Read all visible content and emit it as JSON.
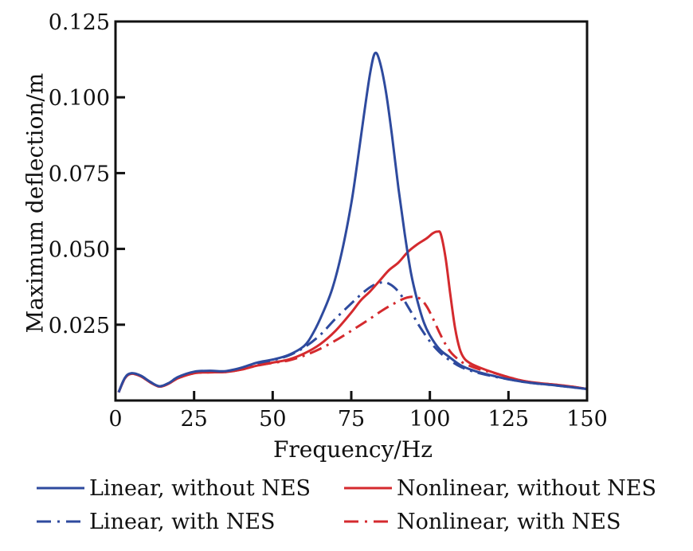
{
  "chart_data": {
    "type": "line",
    "title": "",
    "xlabel": "Frequency/Hz",
    "ylabel": "Maximum deflection/m",
    "xlim": [
      0,
      150
    ],
    "ylim": [
      0,
      0.125
    ],
    "xticks": [
      0,
      25,
      50,
      75,
      100,
      125,
      150
    ],
    "xtick_labels": [
      "0",
      "25",
      "50",
      "75",
      "100",
      "125",
      "150"
    ],
    "yticks": [
      0.025,
      0.05,
      0.075,
      0.1,
      0.125
    ],
    "ytick_labels": [
      "0.025",
      "0.050",
      "0.075",
      "0.100",
      "0.125"
    ],
    "grid": false,
    "legend_placement": "bottom",
    "series": [
      {
        "name": "Linear, without NES",
        "color": "#2e4a9e",
        "style": "solid",
        "x": [
          1,
          3,
          5,
          8,
          11,
          14,
          17,
          20,
          25,
          30,
          35,
          40,
          45,
          50,
          55,
          60,
          63,
          66,
          69,
          72,
          75,
          77,
          79,
          81,
          82.5,
          84,
          86,
          88,
          90,
          92,
          94,
          96,
          98,
          100,
          103,
          106,
          110,
          115,
          120,
          125,
          130,
          135,
          140,
          145,
          150
        ],
        "y": [
          0.0027,
          0.0075,
          0.009,
          0.0082,
          0.0062,
          0.0047,
          0.0058,
          0.0078,
          0.0095,
          0.0098,
          0.0097,
          0.0108,
          0.0125,
          0.0135,
          0.015,
          0.018,
          0.0225,
          0.029,
          0.037,
          0.049,
          0.065,
          0.079,
          0.094,
          0.108,
          0.1145,
          0.112,
          0.102,
          0.087,
          0.07,
          0.055,
          0.042,
          0.033,
          0.026,
          0.0215,
          0.017,
          0.0145,
          0.0115,
          0.0095,
          0.0082,
          0.007,
          0.0061,
          0.0055,
          0.005,
          0.0044,
          0.0038
        ]
      },
      {
        "name": "Nonlinear, without NES",
        "color": "#d42a2e",
        "style": "solid",
        "x": [
          1,
          3,
          5,
          8,
          11,
          14,
          17,
          20,
          25,
          30,
          35,
          40,
          45,
          50,
          55,
          60,
          65,
          70,
          75,
          78,
          81,
          84,
          87,
          90,
          93,
          96,
          99,
          101,
          102.5,
          103.5,
          105,
          106.5,
          108,
          109.5,
          111,
          113,
          116,
          120,
          125,
          130,
          135,
          140,
          145,
          150
        ],
        "y": [
          0.0027,
          0.0073,
          0.0088,
          0.008,
          0.006,
          0.0046,
          0.0056,
          0.0074,
          0.009,
          0.0093,
          0.0094,
          0.0102,
          0.0115,
          0.0125,
          0.0135,
          0.0155,
          0.0185,
          0.023,
          0.029,
          0.033,
          0.036,
          0.0395,
          0.043,
          0.0455,
          0.049,
          0.0515,
          0.0535,
          0.0552,
          0.0557,
          0.0548,
          0.047,
          0.035,
          0.024,
          0.017,
          0.0138,
          0.0122,
          0.0108,
          0.0093,
          0.0077,
          0.0064,
          0.0057,
          0.0052,
          0.0046,
          0.0038
        ]
      },
      {
        "name": "Linear, with NES",
        "color": "#2e4a9e",
        "style": "dashdot",
        "x": [
          1,
          3,
          5,
          8,
          11,
          14,
          17,
          20,
          25,
          30,
          35,
          40,
          45,
          50,
          55,
          60,
          65,
          70,
          75,
          79,
          82,
          85,
          87,
          89,
          91,
          93,
          95,
          97,
          100,
          103,
          106,
          110,
          115,
          120,
          125,
          130,
          135,
          140,
          145,
          150
        ],
        "y": [
          0.0027,
          0.0075,
          0.009,
          0.0082,
          0.0062,
          0.0047,
          0.0058,
          0.0078,
          0.0093,
          0.0096,
          0.0096,
          0.0106,
          0.0122,
          0.0133,
          0.0148,
          0.0175,
          0.0215,
          0.027,
          0.032,
          0.0358,
          0.038,
          0.039,
          0.0385,
          0.037,
          0.0345,
          0.031,
          0.0275,
          0.024,
          0.0195,
          0.016,
          0.0135,
          0.011,
          0.0092,
          0.008,
          0.007,
          0.0061,
          0.0055,
          0.005,
          0.0044,
          0.0038
        ]
      },
      {
        "name": "Nonlinear, with NES",
        "color": "#d42a2e",
        "style": "dashdot",
        "x": [
          1,
          3,
          5,
          8,
          11,
          14,
          17,
          20,
          25,
          30,
          35,
          40,
          45,
          50,
          55,
          60,
          65,
          70,
          75,
          80,
          85,
          89,
          92,
          94.5,
          97,
          99,
          101,
          103,
          105,
          107,
          110,
          113,
          116,
          120,
          125,
          130,
          135,
          140,
          145,
          150
        ],
        "y": [
          0.0027,
          0.0073,
          0.0088,
          0.008,
          0.006,
          0.0046,
          0.0056,
          0.0074,
          0.009,
          0.0093,
          0.0094,
          0.0102,
          0.0115,
          0.0124,
          0.0132,
          0.0148,
          0.017,
          0.0198,
          0.023,
          0.0263,
          0.0298,
          0.0322,
          0.0337,
          0.0342,
          0.0335,
          0.031,
          0.027,
          0.0225,
          0.0185,
          0.0155,
          0.0128,
          0.0113,
          0.0102,
          0.0092,
          0.0077,
          0.0064,
          0.0057,
          0.0052,
          0.0046,
          0.0038
        ]
      }
    ]
  }
}
